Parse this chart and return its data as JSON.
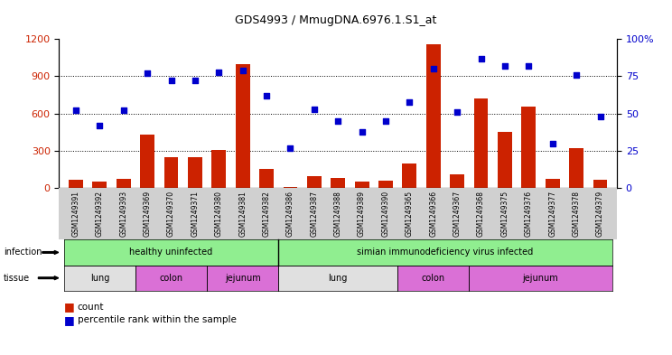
{
  "title": "GDS4993 / MmugDNA.6976.1.S1_at",
  "samples": [
    "GSM1249391",
    "GSM1249392",
    "GSM1249393",
    "GSM1249369",
    "GSM1249370",
    "GSM1249371",
    "GSM1249380",
    "GSM1249381",
    "GSM1249382",
    "GSM1249386",
    "GSM1249387",
    "GSM1249388",
    "GSM1249389",
    "GSM1249390",
    "GSM1249365",
    "GSM1249366",
    "GSM1249367",
    "GSM1249368",
    "GSM1249375",
    "GSM1249376",
    "GSM1249377",
    "GSM1249378",
    "GSM1249379"
  ],
  "counts": [
    70,
    55,
    75,
    430,
    250,
    250,
    305,
    1000,
    155,
    10,
    100,
    80,
    50,
    60,
    195,
    1155,
    110,
    720,
    450,
    660,
    75,
    320,
    65
  ],
  "percentiles": [
    52,
    42,
    52,
    77,
    72,
    72,
    78,
    79,
    62,
    27,
    53,
    45,
    38,
    45,
    58,
    80,
    51,
    87,
    82,
    82,
    30,
    76,
    48
  ],
  "bar_color": "#CC2200",
  "dot_color": "#0000CC",
  "healthy_color": "#90EE90",
  "siv_color": "#90EE90",
  "lung_color": "#E0E0E0",
  "colon_color": "#DA70D6",
  "jejunum_color": "#DA70D6",
  "xtick_bg_color": "#D0D0D0",
  "infection_boundary": 8,
  "tissue_groups": [
    {
      "label": "lung",
      "start": 0,
      "end": 3,
      "color": "#E0E0E0"
    },
    {
      "label": "colon",
      "start": 3,
      "end": 6,
      "color": "#DA70D6"
    },
    {
      "label": "jejunum",
      "start": 6,
      "end": 9,
      "color": "#DA70D6"
    },
    {
      "label": "lung",
      "start": 9,
      "end": 14,
      "color": "#E0E0E0"
    },
    {
      "label": "colon",
      "start": 14,
      "end": 17,
      "color": "#DA70D6"
    },
    {
      "label": "jejunum",
      "start": 17,
      "end": 23,
      "color": "#DA70D6"
    }
  ]
}
